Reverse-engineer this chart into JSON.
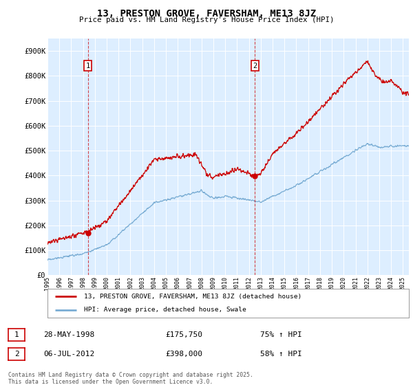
{
  "title": "13, PRESTON GROVE, FAVERSHAM, ME13 8JZ",
  "subtitle": "Price paid vs. HM Land Registry's House Price Index (HPI)",
  "legend_line1": "13, PRESTON GROVE, FAVERSHAM, ME13 8JZ (detached house)",
  "legend_line2": "HPI: Average price, detached house, Swale",
  "annotation1_date": "28-MAY-1998",
  "annotation1_price": "£175,750",
  "annotation1_hpi": "75% ↑ HPI",
  "annotation2_date": "06-JUL-2012",
  "annotation2_price": "£398,000",
  "annotation2_hpi": "58% ↑ HPI",
  "footer": "Contains HM Land Registry data © Crown copyright and database right 2025.\nThis data is licensed under the Open Government Licence v3.0.",
  "red_color": "#cc0000",
  "blue_color": "#7aadd4",
  "background_color": "#ddeeff",
  "grid_color": "#ffffff",
  "ylim": [
    0,
    950000
  ],
  "yticks": [
    0,
    100000,
    200000,
    300000,
    400000,
    500000,
    600000,
    700000,
    800000,
    900000
  ],
  "ytick_labels": [
    "£0",
    "£100K",
    "£200K",
    "£300K",
    "£400K",
    "£500K",
    "£600K",
    "£700K",
    "£800K",
    "£900K"
  ],
  "sale1_year": 1998.41,
  "sale1_red_val": 175750,
  "sale2_year": 2012.5,
  "sale2_red_val": 398000
}
